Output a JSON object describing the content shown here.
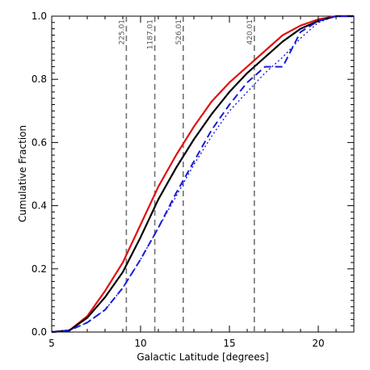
{
  "chart_data": {
    "type": "line",
    "title": "",
    "xlabel": "Galactic Latitude [degrees]",
    "ylabel": "Cumulative Fraction",
    "xlim": [
      5,
      22
    ],
    "ylim": [
      0,
      1.0
    ],
    "xticks": [
      5,
      10,
      15,
      20
    ],
    "xtick_labels": [
      "5",
      "10",
      "15",
      "20"
    ],
    "yticks": [
      0,
      0.2,
      0.4,
      0.6,
      0.8,
      1.0
    ],
    "ytick_labels": [
      "0.0",
      "0.2",
      "0.4",
      "0.6",
      "0.8",
      "1.0"
    ],
    "grid": false,
    "legend": "none",
    "vertical_lines": [
      {
        "x": 9.2,
        "label": "225.01"
      },
      {
        "x": 10.8,
        "label": "1187.01"
      },
      {
        "x": 12.4,
        "label": "526.01"
      },
      {
        "x": 16.4,
        "label": "420.01"
      }
    ],
    "series": [
      {
        "color": "#e01010",
        "style": "solid",
        "width": 2.2,
        "x": [
          5,
          6,
          7,
          8,
          9,
          10,
          11,
          12,
          13,
          14,
          15,
          16,
          17,
          18,
          19,
          20,
          21,
          22
        ],
        "y": [
          0,
          0.005,
          0.05,
          0.13,
          0.22,
          0.34,
          0.46,
          0.56,
          0.65,
          0.73,
          0.79,
          0.84,
          0.89,
          0.94,
          0.97,
          0.99,
          1.0,
          1.0
        ]
      },
      {
        "color": "#000000",
        "style": "solid",
        "width": 2.2,
        "x": [
          5,
          6,
          7,
          8,
          9,
          10,
          11,
          12,
          13,
          14,
          15,
          16,
          17,
          18,
          19,
          20,
          21,
          22
        ],
        "y": [
          0,
          0.005,
          0.045,
          0.11,
          0.19,
          0.3,
          0.42,
          0.52,
          0.61,
          0.69,
          0.76,
          0.82,
          0.87,
          0.92,
          0.96,
          0.985,
          1.0,
          1.0
        ]
      },
      {
        "color": "#1a1ad8",
        "style": "dashed",
        "width": 2.0,
        "x": [
          5,
          6,
          7,
          8,
          9,
          10,
          11,
          12,
          13,
          14,
          15,
          16,
          17,
          18,
          19,
          20,
          21,
          22
        ],
        "y": [
          0,
          0.005,
          0.03,
          0.07,
          0.14,
          0.23,
          0.33,
          0.44,
          0.54,
          0.64,
          0.72,
          0.79,
          0.84,
          0.84,
          0.95,
          0.985,
          1.0,
          1.0
        ]
      },
      {
        "color": "#1a1ad8",
        "style": "dotted",
        "width": 1.4,
        "x": [
          5,
          6,
          7,
          8,
          9,
          10,
          11,
          12,
          13,
          14,
          15,
          16,
          17,
          18,
          19,
          20,
          21,
          22
        ],
        "y": [
          0,
          0.005,
          0.03,
          0.07,
          0.14,
          0.23,
          0.33,
          0.43,
          0.53,
          0.62,
          0.7,
          0.76,
          0.82,
          0.87,
          0.93,
          0.98,
          1.0,
          1.0
        ]
      }
    ]
  }
}
